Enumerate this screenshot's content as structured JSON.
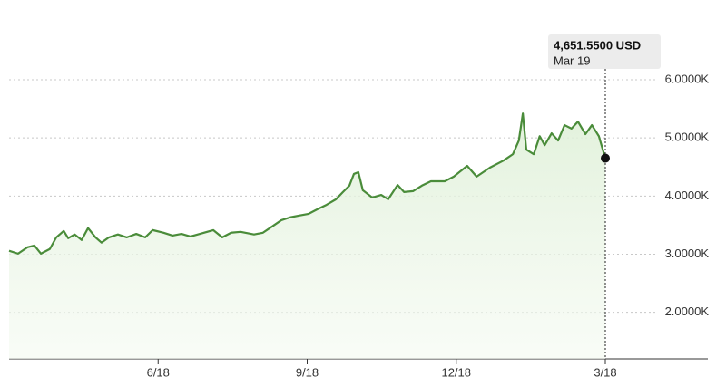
{
  "chart_data": {
    "type": "line",
    "x": [
      0,
      0.18,
      0.37,
      0.51,
      0.64,
      0.82,
      0.95,
      1.1,
      1.19,
      1.32,
      1.46,
      1.59,
      1.74,
      1.86,
      2.01,
      2.19,
      2.37,
      2.56,
      2.74,
      2.89,
      3.11,
      3.29,
      3.47,
      3.65,
      3.84,
      4.11,
      4.29,
      4.47,
      4.66,
      4.93,
      5.11,
      5.3,
      5.48,
      5.66,
      5.84,
      6.03,
      6.21,
      6.39,
      6.58,
      6.72,
      6.85,
      6.94,
      7.03,
      7.12,
      7.31,
      7.49,
      7.63,
      7.82,
      7.95,
      8.13,
      8.31,
      8.49,
      8.77,
      8.95,
      9.22,
      9.41,
      9.68,
      9.95,
      10.14,
      10.26,
      10.34,
      10.41,
      10.56,
      10.68,
      10.78,
      10.92,
      11.05,
      11.18,
      11.32,
      11.45,
      11.6,
      11.73,
      11.87,
      12.0
    ],
    "values": [
      3060,
      3010,
      3120,
      3150,
      3010,
      3090,
      3290,
      3400,
      3275,
      3340,
      3245,
      3450,
      3290,
      3200,
      3290,
      3340,
      3290,
      3350,
      3290,
      3415,
      3370,
      3320,
      3350,
      3305,
      3350,
      3415,
      3290,
      3370,
      3385,
      3340,
      3370,
      3480,
      3585,
      3635,
      3665,
      3695,
      3775,
      3850,
      3945,
      4070,
      4180,
      4380,
      4410,
      4100,
      3975,
      4020,
      3945,
      4190,
      4070,
      4085,
      4180,
      4255,
      4255,
      4335,
      4520,
      4335,
      4490,
      4610,
      4720,
      4955,
      5420,
      4800,
      4720,
      5030,
      4875,
      5080,
      4955,
      5220,
      5160,
      5280,
      5065,
      5220,
      5030,
      4651.55
    ],
    "color": "#4a8c3a",
    "xlim": [
      0,
      14
    ],
    "xticks": [
      {
        "value": 3,
        "label": "6/18"
      },
      {
        "value": 6,
        "label": "9/18"
      },
      {
        "value": 9,
        "label": "12/18"
      },
      {
        "value": 12,
        "label": "3/18"
      }
    ],
    "ylim": [
      1200,
      6100
    ],
    "yticks": [
      {
        "value": 2000,
        "label": "2.0000K"
      },
      {
        "value": 3000,
        "label": "3.0000K"
      },
      {
        "value": 4000,
        "label": "4.0000K"
      },
      {
        "value": 5000,
        "label": "5.0000K"
      },
      {
        "value": 6000,
        "label": "6.0000K"
      }
    ],
    "grid": true,
    "tooltip": {
      "value_label": "4,651.5500 USD",
      "date": "Mar 19"
    }
  }
}
